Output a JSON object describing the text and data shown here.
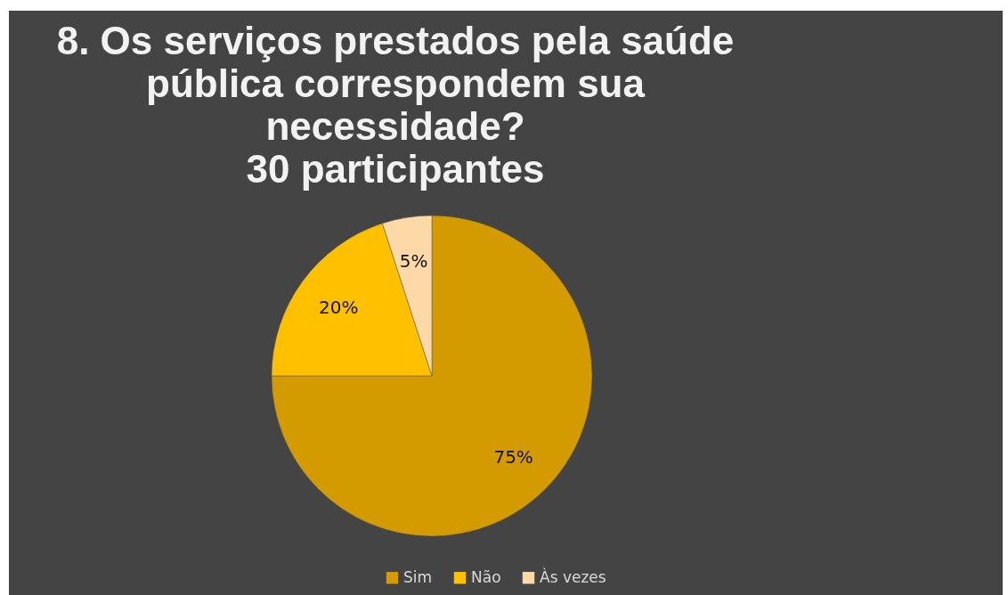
{
  "chart_data": {
    "type": "pie",
    "title": [
      "8. Os serviços prestados pela saúde",
      "pública correspondem sua",
      "necessidade?",
      "30 participantes"
    ],
    "categories": [
      "Sim",
      "Não",
      "Às vezes"
    ],
    "values": [
      75,
      20,
      5
    ],
    "colors": [
      "#d49b00",
      "#ffc000",
      "#fdd9a8"
    ],
    "value_labels": [
      "75%",
      "20%",
      "5%"
    ],
    "legend": "bottom"
  }
}
